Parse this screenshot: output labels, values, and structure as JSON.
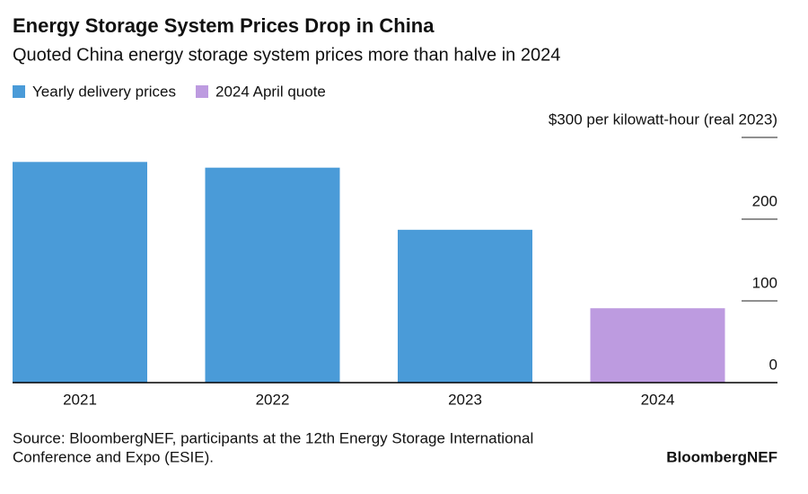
{
  "chart_data": {
    "type": "bar",
    "title": "Energy Storage System Prices Drop in China",
    "subtitle": "Quoted China energy storage system prices more than halve in 2024",
    "categories": [
      "2021",
      "2022",
      "2023",
      "2024"
    ],
    "series": [
      {
        "name": "Yearly delivery prices",
        "color": "#4a9bd8",
        "values": [
          270,
          263,
          187,
          null
        ]
      },
      {
        "name": "2024 April quote",
        "color": "#bd9be0",
        "values": [
          null,
          null,
          null,
          91
        ]
      }
    ],
    "ylim": [
      0,
      300
    ],
    "yticks": [
      0,
      100,
      200,
      {
        "value": 300,
        "label": "$300 per kilowatt-hour (real 2023)"
      }
    ],
    "source": [
      "Source: BloombergNEF, participants at the 12th Energy Storage International",
      "Conference and Expo (ESIE)."
    ],
    "brand": "BloombergNEF"
  }
}
